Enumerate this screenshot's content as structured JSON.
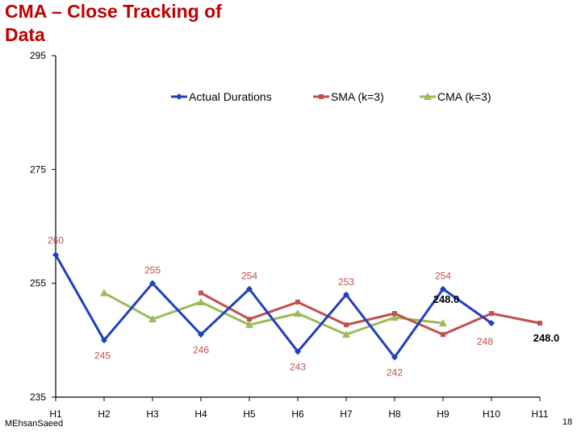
{
  "slide": {
    "title": "CMA – Close Tracking of Data",
    "author": "MEhsanSaeed",
    "page_number": "18"
  },
  "chart_data": {
    "type": "line",
    "title": "CMA – Close Tracking of Data",
    "xlabel": "",
    "ylabel": "",
    "categories": [
      "H1",
      "H2",
      "H3",
      "H4",
      "H5",
      "H6",
      "H7",
      "H8",
      "H9",
      "H10",
      "H11"
    ],
    "ylim": [
      235,
      295
    ],
    "yticks": [
      235,
      255,
      275,
      295
    ],
    "grid": false,
    "legend_position": "top",
    "series": [
      {
        "name": "Actual Durations",
        "color": "#1f3fbf",
        "marker": "diamond",
        "values": [
          260,
          245,
          255,
          246,
          254,
          243,
          253,
          242,
          254,
          248,
          null
        ]
      },
      {
        "name": "SMA (k=3)",
        "color": "#c0504d",
        "marker": "square",
        "values": [
          null,
          null,
          null,
          253.3,
          248.7,
          251.7,
          247.7,
          249.7,
          246.0,
          249.7,
          248.0
        ]
      },
      {
        "name": "CMA (k=3)",
        "color": "#9bbb59",
        "marker": "triangle",
        "values": [
          null,
          253.3,
          248.7,
          251.7,
          247.7,
          249.7,
          246.0,
          249.0,
          248.0,
          null,
          null
        ]
      }
    ],
    "data_labels": [
      {
        "text": "260",
        "category": "H1",
        "value": 260
      },
      {
        "text": "245",
        "category": "H2",
        "value": 245
      },
      {
        "text": "255",
        "category": "H3",
        "value": 255
      },
      {
        "text": "246",
        "category": "H4",
        "value": 246
      },
      {
        "text": "254",
        "category": "H5",
        "value": 254
      },
      {
        "text": "243",
        "category": "H6",
        "value": 243
      },
      {
        "text": "253",
        "category": "H7",
        "value": 253
      },
      {
        "text": "242",
        "category": "H8",
        "value": 242
      },
      {
        "text": "254",
        "category": "H9",
        "value": 254
      },
      {
        "text": "248",
        "category": "H10",
        "value": 248
      }
    ],
    "annotations": [
      {
        "text": "248.0",
        "category": "H9"
      },
      {
        "text": "248.0",
        "category": "H11"
      }
    ]
  }
}
